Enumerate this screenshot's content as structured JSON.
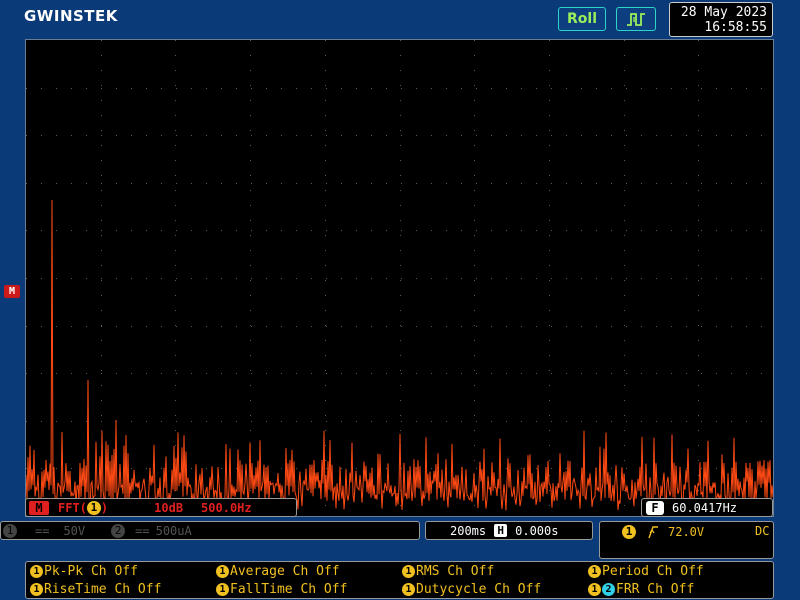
{
  "header": {
    "brand": "GWINSTEK",
    "roll_label": "Roll",
    "trigger_mode_icon": "edge-pulse-icon",
    "date": "28 May 2023",
    "time": "16:58:55"
  },
  "screen": {
    "math_marker": "M",
    "trace_color": "#ff4a14",
    "grid_color": "#5a5a5a"
  },
  "math_bar": {
    "badge": "M",
    "function": "FFT(",
    "source_channel": "1",
    "close": ")",
    "scale": "10dB",
    "span": "500.0Hz"
  },
  "frequency_counter": {
    "badge": "F",
    "value": "60.0417Hz"
  },
  "channel_bar": {
    "ch1_badge": "1",
    "ch1_coupling": "==",
    "ch1_scale": "50V",
    "ch2_badge": "2",
    "ch2_coupling": "==",
    "ch2_scale": "500uA"
  },
  "timebase": {
    "scale": "200ms",
    "position_badge": "H",
    "position": "0.000s"
  },
  "trigger": {
    "source_badge": "1",
    "slope_icon": "rising-edge-icon",
    "level": "72.0V",
    "coupling": "DC"
  },
  "measurements": [
    {
      "badge": "1",
      "label": "Pk-Pk Ch Off"
    },
    {
      "badge": "1",
      "label": "Average Ch Off"
    },
    {
      "badge": "1",
      "label": "RMS Ch Off"
    },
    {
      "badge": "1",
      "label": "Period Ch Off"
    },
    {
      "badge": "1",
      "label": "RiseTime Ch Off"
    },
    {
      "badge": "1",
      "label": "FallTime Ch Off"
    },
    {
      "badge": "1",
      "label": "Dutycycle Ch Off"
    },
    {
      "badge": "1",
      "badge2": "2",
      "label": "FRR Ch Off"
    }
  ],
  "colors": {
    "background": "#0a3a78",
    "ch1": "#f0c020",
    "ch2": "#30d0e8",
    "math": "#e02020",
    "roll_text": "#9bf05a"
  }
}
